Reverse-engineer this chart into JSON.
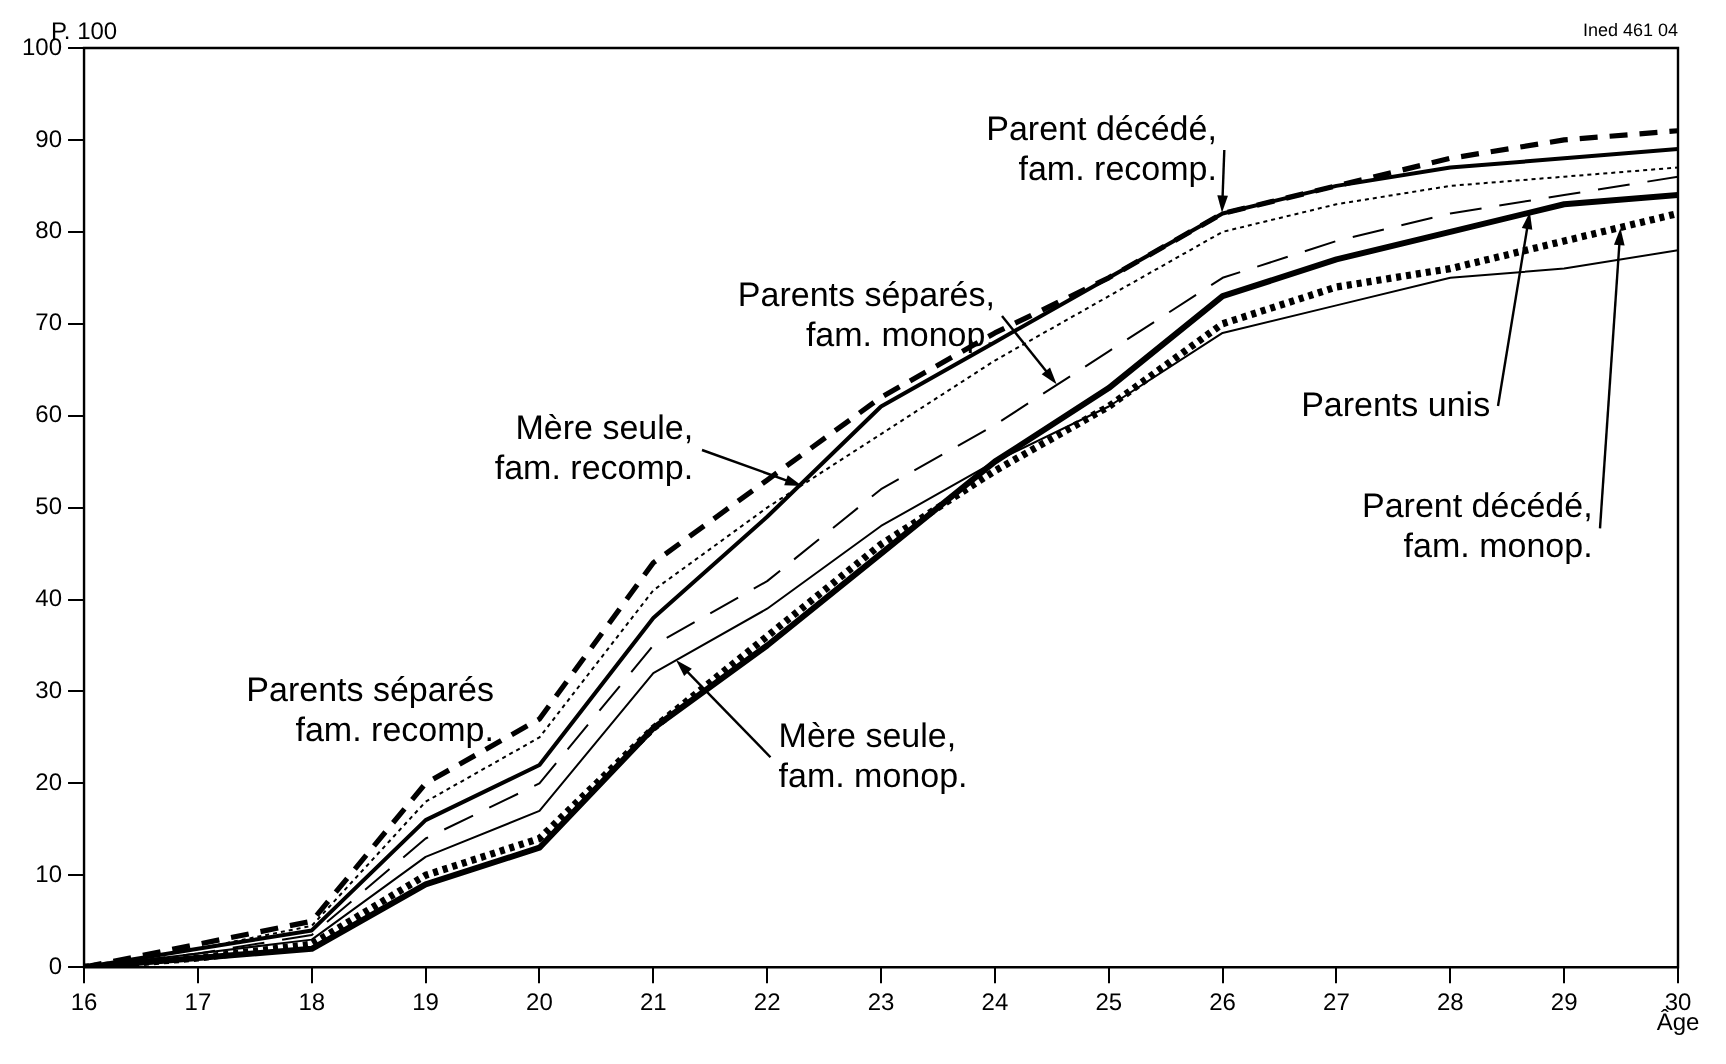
{
  "chart_data": {
    "type": "line",
    "xlabel": "Âge",
    "ylabel": "P. 100",
    "annotations": [
      "Ined 461 04",
      {
        "text": "Parent décédé, fam. recomp.",
        "x": 26,
        "y": 82
      },
      {
        "text": "Mère seule, fam. recomp.",
        "x": 22.3,
        "y": 52.4
      },
      {
        "text": "Parents séparés, fam. monop.",
        "x": 24.55,
        "y": 63.4
      },
      {
        "text": "Mère seule, fam. monop.",
        "x": 21.2,
        "y": 33.4
      },
      {
        "text": "Parents unis",
        "x": 28.7,
        "y": 82.1
      },
      {
        "text": "Parent décédé, fam. monop.",
        "x": 29.5,
        "y": 80.5
      }
    ],
    "x": [
      16,
      17,
      18,
      19,
      20,
      21,
      22,
      23,
      24,
      25,
      26,
      27,
      28,
      29,
      30
    ],
    "xlim": [
      16,
      30
    ],
    "xticks": [
      16,
      17,
      18,
      19,
      20,
      21,
      22,
      23,
      24,
      25,
      26,
      27,
      28,
      29,
      30
    ],
    "ylim": [
      0,
      100
    ],
    "yticks": [
      0,
      10,
      20,
      30,
      40,
      50,
      60,
      70,
      80,
      90,
      100
    ],
    "grid": false,
    "legend": false,
    "marker": "none",
    "series": [
      {
        "name": "Parents séparés fam. recomp.",
        "color": "#000000",
        "line_style": "dashed",
        "values": [
          0,
          2.5,
          5,
          20,
          27,
          44,
          53,
          62,
          69,
          75,
          82,
          85,
          88,
          90,
          91
        ]
      },
      {
        "color": "#000000",
        "line_style": "solid",
        "values": [
          0,
          2,
          4,
          16,
          22,
          38,
          49,
          61,
          68,
          75,
          82,
          85,
          87,
          88,
          89
        ]
      },
      {
        "color": "#000000",
        "line_style": "dotted",
        "values": [
          0,
          2,
          4.5,
          18,
          25,
          41,
          50,
          58,
          66,
          73,
          80,
          83,
          85,
          86,
          87
        ]
      },
      {
        "color": "#000000",
        "line_style": "dashed",
        "values": [
          0,
          1.5,
          3.5,
          14,
          20,
          35,
          42,
          52,
          59,
          67,
          75,
          79,
          82,
          84,
          86
        ]
      },
      {
        "color": "#000000",
        "line_style": "solid",
        "values": [
          0,
          1.5,
          3,
          12,
          17,
          32,
          39,
          48,
          55,
          61,
          69,
          72,
          75,
          76,
          78
        ]
      },
      {
        "color": "#000000",
        "line_style": "solid",
        "values": [
          0,
          1,
          2,
          9,
          13,
          26,
          35,
          45,
          55,
          63,
          73,
          77,
          80,
          83,
          84
        ]
      },
      {
        "color": "#000000",
        "line_style": "dotted",
        "values": [
          0,
          1,
          2.5,
          10,
          14,
          26,
          36,
          46,
          54,
          61,
          70,
          74,
          76,
          79,
          82
        ]
      }
    ]
  }
}
